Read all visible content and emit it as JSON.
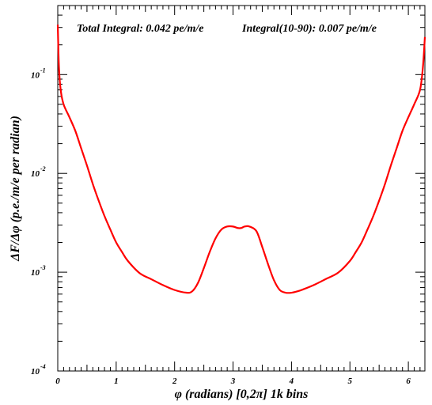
{
  "chart_data": {
    "type": "line",
    "annotations": {
      "left": "Total Integral: 0.042 pe/m/e",
      "right": "Integral(10-90): 0.007 pe/m/e"
    },
    "xlabel": "φ (radians) [0,2π] 1k bins",
    "ylabel": "ΔF/Δφ (p.e./m/e per radian)",
    "xlim": [
      0,
      6.283
    ],
    "ylim": [
      0.0001,
      0.5
    ],
    "yscale": "log",
    "x_ticks": [
      {
        "value": 0,
        "label": "0"
      },
      {
        "value": 1,
        "label": "1"
      },
      {
        "value": 2,
        "label": "2"
      },
      {
        "value": 3,
        "label": "3"
      },
      {
        "value": 4,
        "label": "4"
      },
      {
        "value": 5,
        "label": "5"
      },
      {
        "value": 6,
        "label": "6"
      }
    ],
    "y_ticks": [
      {
        "value": 0.0001,
        "base": "10",
        "exp": "-4"
      },
      {
        "value": 0.001,
        "base": "10",
        "exp": "-3"
      },
      {
        "value": 0.01,
        "base": "10",
        "exp": "-2"
      },
      {
        "value": 0.1,
        "base": "10",
        "exp": "-1"
      }
    ],
    "grid": false,
    "line_color": "#ff0000",
    "series": [
      {
        "x": [
          0.0,
          0.02,
          0.05,
          0.1,
          0.2,
          0.3,
          0.4,
          0.5,
          0.6,
          0.7,
          0.8,
          0.9,
          1.0,
          1.1,
          1.2,
          1.4,
          1.6,
          1.8,
          2.0,
          2.2,
          2.3,
          2.4,
          2.5,
          2.6,
          2.7,
          2.8,
          2.9,
          3.0,
          3.08,
          3.14,
          3.2,
          3.28,
          3.4,
          3.5,
          3.6,
          3.7,
          3.8,
          3.9,
          4.0,
          4.1,
          4.2,
          4.4,
          4.6,
          4.8,
          5.0,
          5.1,
          5.2,
          5.3,
          5.4,
          5.5,
          5.6,
          5.7,
          5.8,
          5.9,
          6.0,
          6.1,
          6.2,
          6.25,
          6.283
        ],
        "y": [
          0.32,
          0.12,
          0.07,
          0.05,
          0.037,
          0.027,
          0.018,
          0.012,
          0.0078,
          0.0053,
          0.0037,
          0.0027,
          0.002,
          0.0016,
          0.0013,
          0.00098,
          0.00085,
          0.00074,
          0.00066,
          0.00062,
          0.00064,
          0.00078,
          0.0011,
          0.0016,
          0.0022,
          0.0027,
          0.0029,
          0.0029,
          0.0028,
          0.0028,
          0.0029,
          0.0029,
          0.0026,
          0.0018,
          0.0012,
          0.00083,
          0.00066,
          0.00062,
          0.00062,
          0.00064,
          0.00067,
          0.00075,
          0.00086,
          0.00099,
          0.0013,
          0.0016,
          0.002,
          0.0027,
          0.0037,
          0.0053,
          0.0078,
          0.012,
          0.018,
          0.027,
          0.037,
          0.05,
          0.07,
          0.12,
          0.24
        ]
      }
    ]
  }
}
